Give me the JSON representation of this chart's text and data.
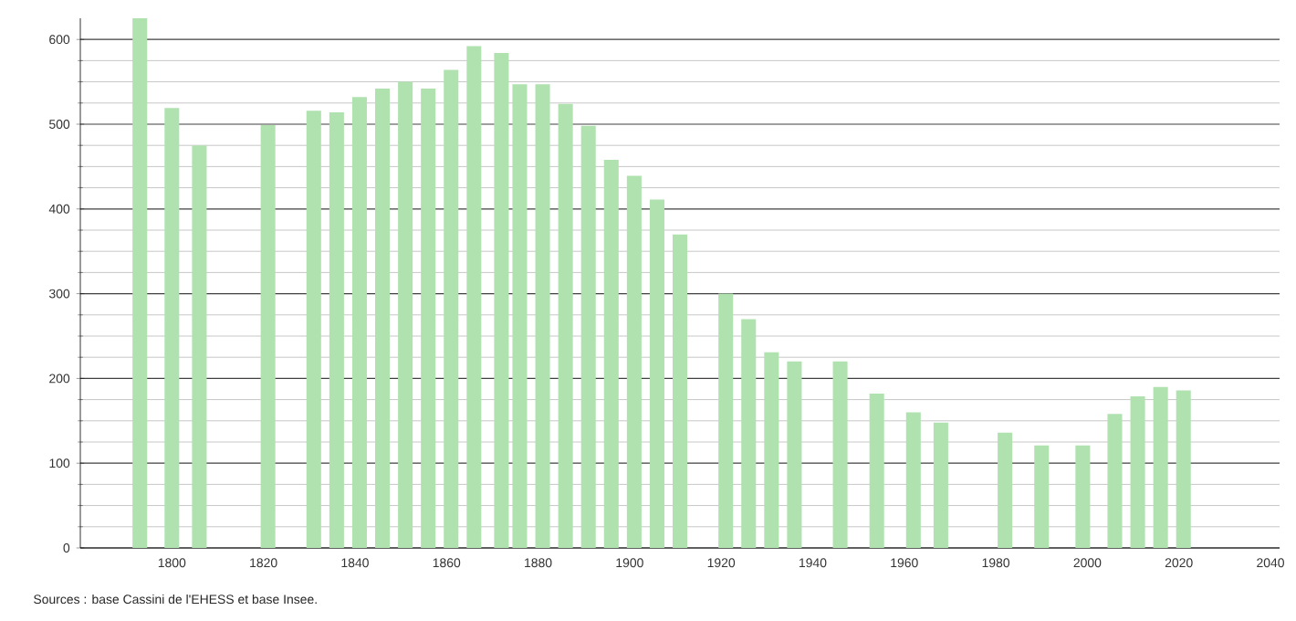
{
  "chart_data": {
    "type": "bar",
    "x": [
      1793,
      1800,
      1806,
      1821,
      1831,
      1836,
      1841,
      1846,
      1851,
      1856,
      1861,
      1866,
      1872,
      1876,
      1881,
      1886,
      1891,
      1896,
      1901,
      1906,
      1911,
      1921,
      1926,
      1931,
      1936,
      1946,
      1954,
      1962,
      1968,
      1982,
      1990,
      1999,
      2006,
      2011,
      2016,
      2021
    ],
    "values": [
      625,
      519,
      475,
      499,
      516,
      514,
      532,
      542,
      550,
      542,
      564,
      592,
      584,
      547,
      547,
      524,
      498,
      458,
      439,
      411,
      370,
      300,
      270,
      231,
      220,
      220,
      182,
      160,
      148,
      136,
      121,
      121,
      158,
      179,
      190,
      186
    ],
    "color": "#b0e2b0",
    "xlim": [
      1780,
      2042
    ],
    "ylim": [
      0,
      625
    ],
    "xticks": [
      1800,
      1820,
      1840,
      1860,
      1880,
      1900,
      1920,
      1940,
      1960,
      1980,
      2000,
      2020,
      2040
    ],
    "yticks": [
      0,
      100,
      200,
      300,
      400,
      500,
      600
    ],
    "grid": "y",
    "annotations": [
      "Sources : base Cassini de l'EHESS et base Insee."
    ]
  }
}
